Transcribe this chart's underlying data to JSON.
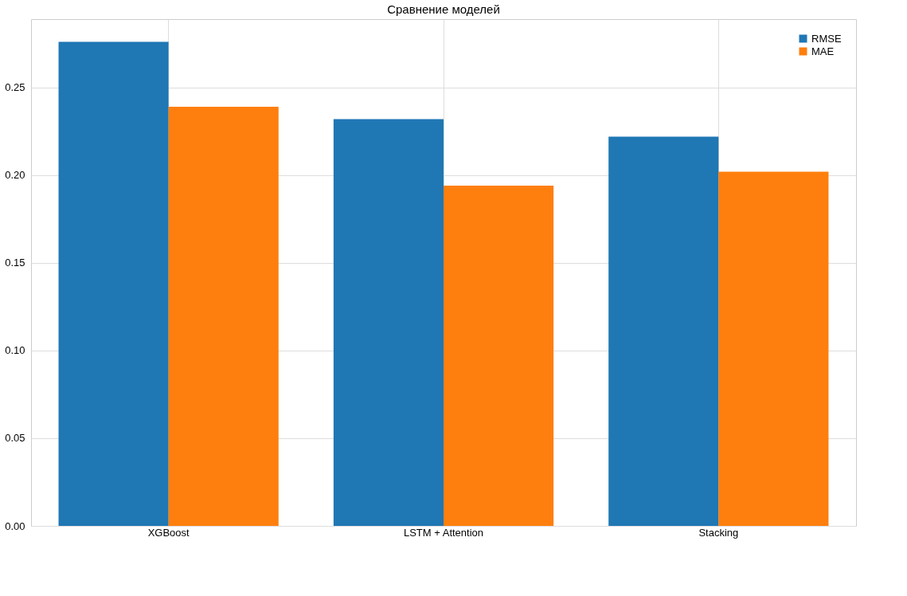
{
  "chart_data": {
    "type": "bar",
    "title": "Сравнение моделей",
    "categories": [
      "XGBoost",
      "LSTM + Attention",
      "Stacking"
    ],
    "series": [
      {
        "name": "RMSE",
        "color": "#1f77b4",
        "values": [
          0.276,
          0.232,
          0.222
        ]
      },
      {
        "name": "MAE",
        "color": "#ff7f0e",
        "values": [
          0.239,
          0.194,
          0.202
        ]
      }
    ],
    "ylim": [
      0,
      0.289
    ],
    "yticks": [
      {
        "value": 0,
        "label": "0.00"
      },
      {
        "value": 0.05,
        "label": "0.05"
      },
      {
        "value": 0.1,
        "label": "0.10"
      },
      {
        "value": 0.15,
        "label": "0.15"
      },
      {
        "value": 0.2,
        "label": "0.20"
      },
      {
        "value": 0.25,
        "label": "0.25"
      }
    ],
    "grid": true,
    "legend": "top right"
  }
}
